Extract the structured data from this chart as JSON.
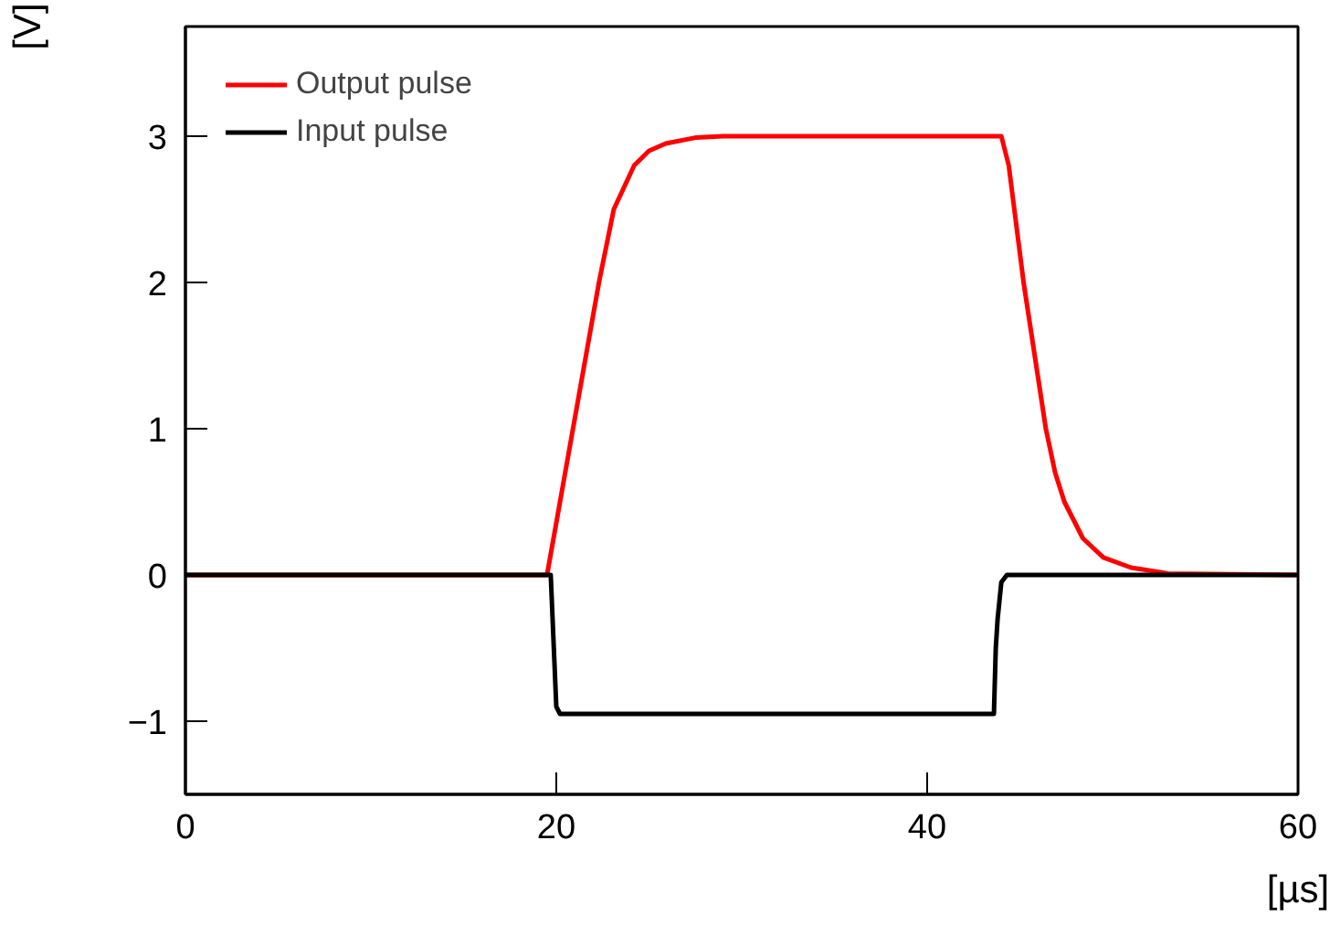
{
  "chart_data": {
    "type": "line",
    "xlabel": "[µs]",
    "ylabel": "[V]",
    "xlim": [
      0,
      60
    ],
    "ylim": [
      -1.5,
      3.75
    ],
    "xticks": [
      0,
      20,
      40,
      60
    ],
    "yticks": [
      {
        "value": -1,
        "label": "−1"
      },
      0,
      1,
      2,
      3
    ],
    "grid": false,
    "legend": "top left",
    "marker": "none",
    "line_style": "solid",
    "series": [
      {
        "name": "Output pulse",
        "color": "#ff0000",
        "x": [
          0,
          19.5,
          20.2,
          20.9,
          21.6,
          22.3,
          23.1,
          24.2,
          25.0,
          25.9,
          27.5,
          29.0,
          44.0,
          44.4,
          44.7,
          45.2,
          45.8,
          46.4,
          46.9,
          47.4,
          48.4,
          49.5,
          51.0,
          53.0,
          60
        ],
        "values": [
          0,
          0,
          0.5,
          1.0,
          1.5,
          2.0,
          2.5,
          2.8,
          2.9,
          2.95,
          2.99,
          3.0,
          3.0,
          2.8,
          2.5,
          2.0,
          1.5,
          1.0,
          0.7,
          0.5,
          0.25,
          0.12,
          0.05,
          0.01,
          0
        ]
      },
      {
        "name": "Input pulse",
        "color": "#000000",
        "x": [
          0,
          19.7,
          19.8,
          19.9,
          20.0,
          20.2,
          43.6,
          43.7,
          43.8,
          44.0,
          44.3,
          60
        ],
        "values": [
          0,
          0,
          -0.3,
          -0.6,
          -0.9,
          -0.95,
          -0.95,
          -0.5,
          -0.3,
          -0.05,
          0,
          0
        ]
      }
    ]
  }
}
